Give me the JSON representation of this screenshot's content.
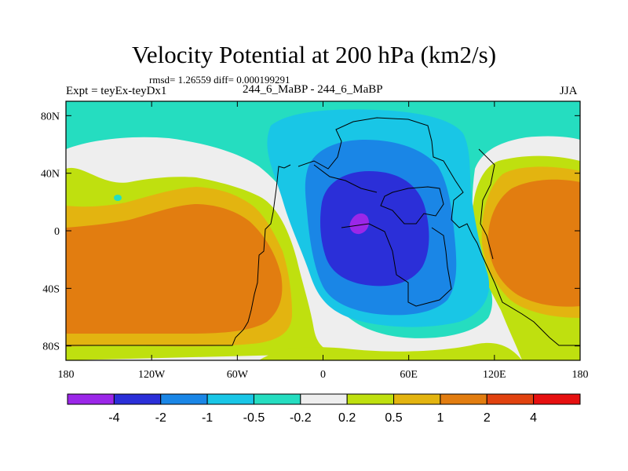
{
  "chart_data": {
    "type": "filled-contour map",
    "title": "Velocity Potential at 200 hPa (km2/s)",
    "stats_text": "rmsd= 1.26559 diff= 0.000199291",
    "left_label": "Expt = teyEx-teyDx1",
    "center_label": "244_6_MaBP - 244_6_MaBP",
    "right_label": "JJA",
    "x_ticks": [
      "180",
      "120W",
      "60W",
      "0",
      "60E",
      "120E",
      "180"
    ],
    "x_values": [
      -180,
      -120,
      -60,
      0,
      60,
      120,
      180
    ],
    "y_ticks": [
      "80N",
      "40N",
      "0",
      "40S",
      "80S"
    ],
    "y_values": [
      80,
      40,
      0,
      -40,
      -80
    ],
    "xlim": [
      -180,
      180
    ],
    "ylim": [
      -90,
      90
    ],
    "colorbar": {
      "levels": [
        "-4",
        "-2",
        "-1",
        "-0.5",
        "-0.2",
        "0.2",
        "0.5",
        "1",
        "2",
        "4"
      ],
      "colors": [
        "#9b27e8",
        "#2b2fd8",
        "#1a86e6",
        "#19c6e6",
        "#25ddc0",
        "#eeeeee",
        "#bfe00f",
        "#e3b410",
        "#e27d10",
        "#e1420f",
        "#e61010"
      ]
    }
  }
}
